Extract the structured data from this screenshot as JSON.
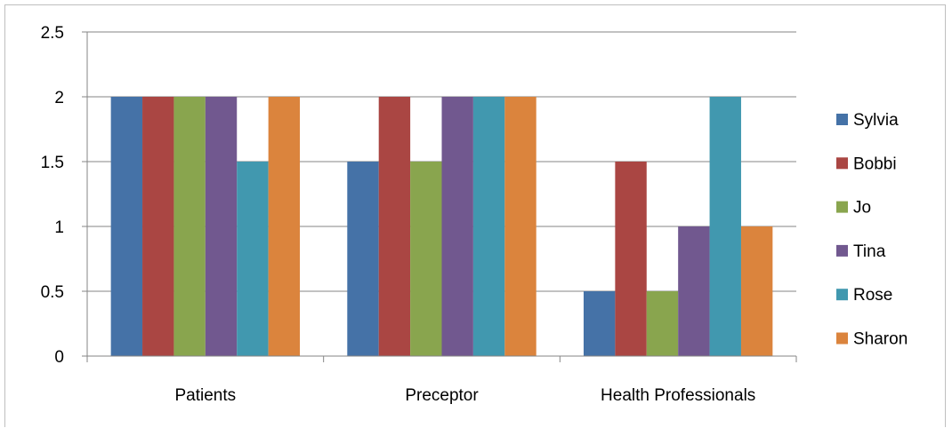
{
  "chart_data": {
    "type": "bar",
    "categories": [
      "Patients",
      "Preceptor",
      "Health Professionals"
    ],
    "series": [
      {
        "name": "Sylvia",
        "color": "#4572A7",
        "values": [
          2,
          1.5,
          0.5
        ]
      },
      {
        "name": "Bobbi",
        "color": "#AA4643",
        "values": [
          2,
          2,
          1.5
        ]
      },
      {
        "name": "Jo",
        "color": "#89A54E",
        "values": [
          2,
          1.5,
          0.5
        ]
      },
      {
        "name": "Tina",
        "color": "#71588F",
        "values": [
          2,
          2,
          1
        ]
      },
      {
        "name": "Rose",
        "color": "#4198AF",
        "values": [
          1.5,
          2,
          2
        ]
      },
      {
        "name": "Sharon",
        "color": "#DB843D",
        "values": [
          2,
          2,
          1
        ]
      }
    ],
    "yticks": [
      "0",
      "0.5",
      "1",
      "1.5",
      "2",
      "2.5"
    ],
    "ylim": [
      0,
      2.5
    ],
    "grid": true,
    "legend": "right"
  }
}
